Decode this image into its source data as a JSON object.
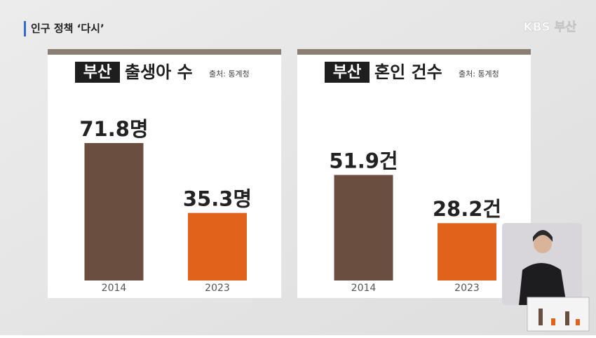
{
  "header": {
    "program": "인구 정책 ‘다시’",
    "logo": "KBS 부산"
  },
  "chart_data": [
    {
      "type": "bar",
      "badge": "부산",
      "title": "출생아 수",
      "source": "출처: 통계청",
      "categories": [
        "2014",
        "2023"
      ],
      "values": [
        71.8,
        35.3
      ],
      "value_labels": [
        "71.8명",
        "35.3명"
      ],
      "colors": [
        "#6a4e3f",
        "#e0621b"
      ]
    },
    {
      "type": "bar",
      "badge": "부산",
      "title": "혼인 건수",
      "source": "출처: 통계청",
      "categories": [
        "2014",
        "2023"
      ],
      "values": [
        51.9,
        28.2
      ],
      "value_labels": [
        "51.9건",
        "28.2건"
      ],
      "colors": [
        "#6a4e3f",
        "#e0621b"
      ]
    }
  ]
}
